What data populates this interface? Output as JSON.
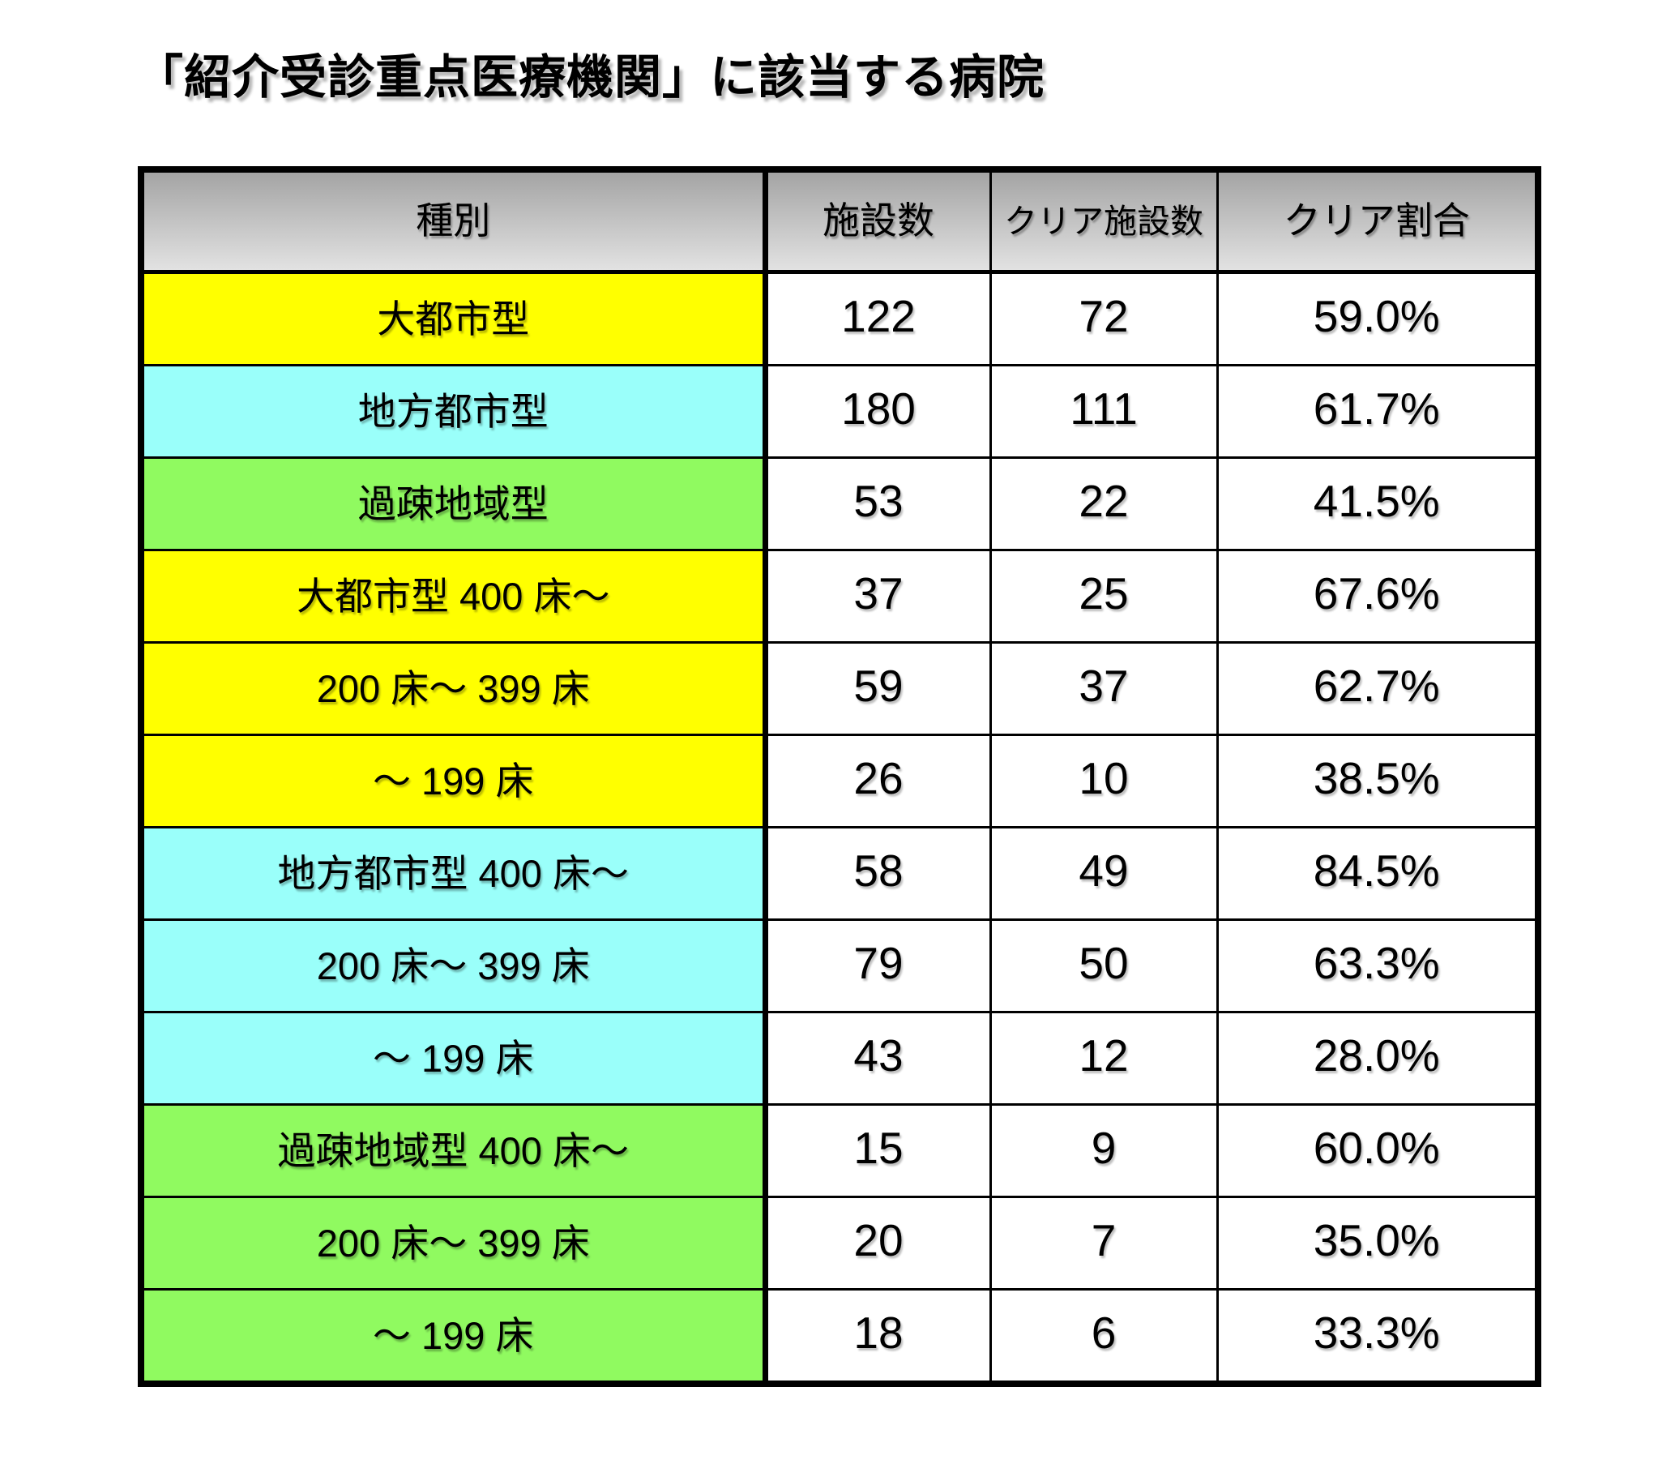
{
  "page": {
    "title": "「紹介受診重点医療機関」に該当する病院"
  },
  "colors": {
    "metro": "#FFFF00",
    "regional": "#9AFFFA",
    "rural": "#90FA60",
    "header_top": "#A4A4A4",
    "header_bottom": "#E2E2E2",
    "border": "#000000"
  },
  "table": {
    "columns": [
      "種別",
      "施設数",
      "クリア施設数",
      "クリア割合"
    ],
    "rows": [
      {
        "category": "大都市型",
        "group": "metro",
        "facilities": "122",
        "clear": "72",
        "ratio": "59.0%"
      },
      {
        "category": "地方都市型",
        "group": "regional",
        "facilities": "180",
        "clear": "111",
        "ratio": "61.7%"
      },
      {
        "category": "過疎地域型",
        "group": "rural",
        "facilities": "53",
        "clear": "22",
        "ratio": "41.5%"
      },
      {
        "category": "大都市型 400 床～",
        "group": "metro",
        "facilities": "37",
        "clear": "25",
        "ratio": "67.6%"
      },
      {
        "category": "200 床～ 399 床",
        "group": "metro",
        "facilities": "59",
        "clear": "37",
        "ratio": "62.7%"
      },
      {
        "category": "～ 199 床",
        "group": "metro",
        "facilities": "26",
        "clear": "10",
        "ratio": "38.5%"
      },
      {
        "category": "地方都市型 400 床～",
        "group": "regional",
        "facilities": "58",
        "clear": "49",
        "ratio": "84.5%"
      },
      {
        "category": "200 床～ 399 床",
        "group": "regional",
        "facilities": "79",
        "clear": "50",
        "ratio": "63.3%"
      },
      {
        "category": "～ 199 床",
        "group": "regional",
        "facilities": "43",
        "clear": "12",
        "ratio": "28.0%"
      },
      {
        "category": "過疎地域型 400 床～",
        "group": "rural",
        "facilities": "15",
        "clear": "9",
        "ratio": "60.0%"
      },
      {
        "category": "200 床～ 399 床",
        "group": "rural",
        "facilities": "20",
        "clear": "7",
        "ratio": "35.0%"
      },
      {
        "category": "～ 199 床",
        "group": "rural",
        "facilities": "18",
        "clear": "6",
        "ratio": "33.3%"
      }
    ]
  },
  "chart_data": {
    "type": "table",
    "title": "「紹介受診重点医療機関」に該当する病院",
    "columns": [
      "種別",
      "施設数",
      "クリア施設数",
      "クリア割合"
    ],
    "rows": [
      [
        "大都市型",
        122,
        72,
        "59.0%"
      ],
      [
        "地方都市型",
        180,
        111,
        "61.7%"
      ],
      [
        "過疎地域型",
        53,
        22,
        "41.5%"
      ],
      [
        "大都市型 400 床～",
        37,
        25,
        "67.6%"
      ],
      [
        "200 床～ 399 床",
        59,
        37,
        "62.7%"
      ],
      [
        "～ 199 床",
        26,
        10,
        "38.5%"
      ],
      [
        "地方都市型 400 床～",
        58,
        49,
        "84.5%"
      ],
      [
        "200 床～ 399 床",
        79,
        50,
        "63.3%"
      ],
      [
        "～ 199 床",
        43,
        12,
        "28.0%"
      ],
      [
        "過疎地域型 400 床～",
        15,
        9,
        "60.0%"
      ],
      [
        "200 床～ 399 床",
        20,
        7,
        "35.0%"
      ],
      [
        "～ 199 床",
        18,
        6,
        "33.3%"
      ]
    ],
    "row_groups": [
      "metro",
      "regional",
      "rural",
      "metro",
      "metro",
      "metro",
      "regional",
      "regional",
      "regional",
      "rural",
      "rural",
      "rural"
    ],
    "group_colors": {
      "metro": "#FFFF00",
      "regional": "#9AFFFA",
      "rural": "#90FA60"
    },
    "legend_position": "none",
    "grid": true
  }
}
